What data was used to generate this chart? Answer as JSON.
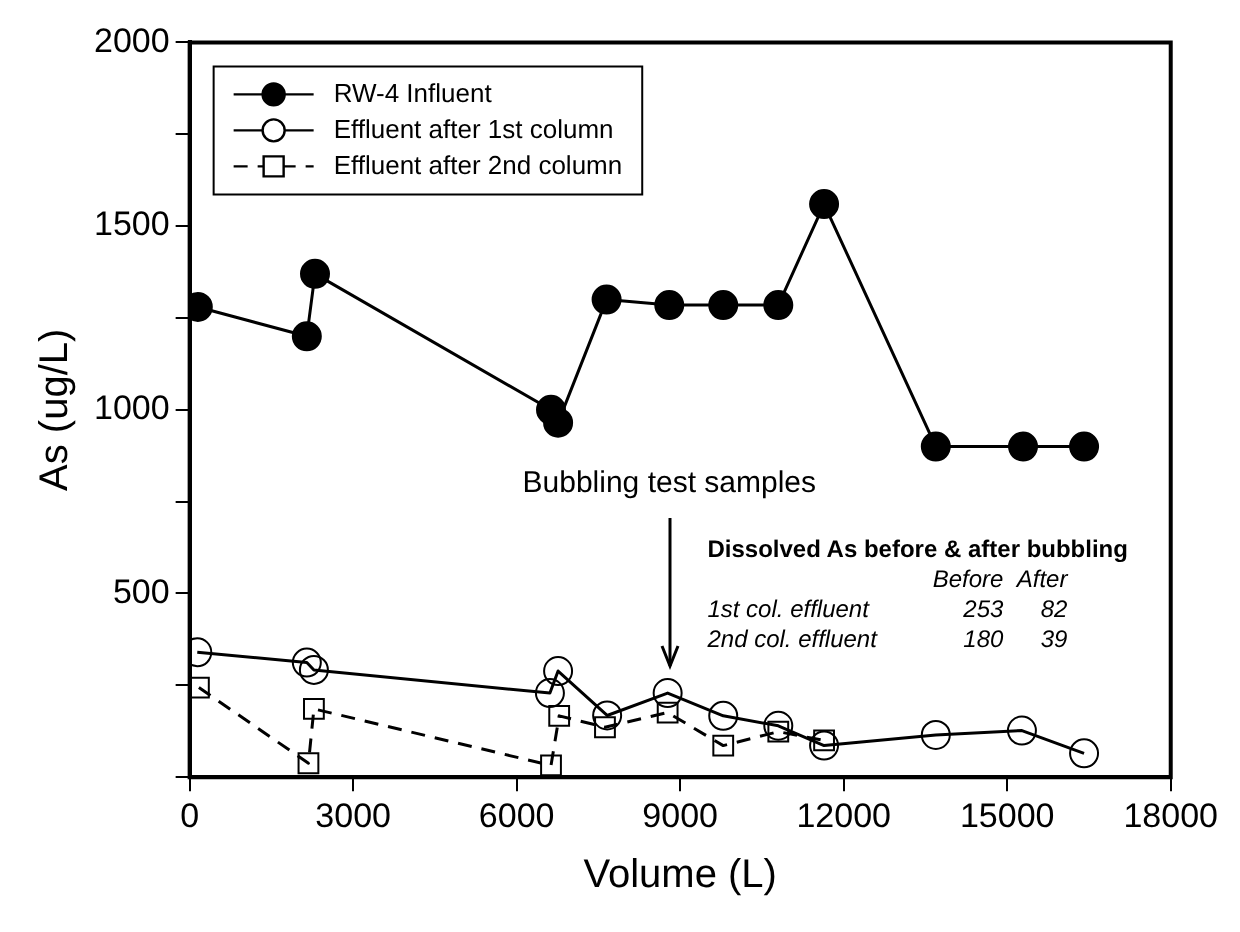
{
  "chart_data": {
    "type": "line",
    "xlabel": "Volume (L)",
    "ylabel": "As (ug/L)",
    "xlim": [
      0,
      18000
    ],
    "xticks": [
      0,
      3000,
      6000,
      9000,
      12000,
      15000,
      18000
    ],
    "ylim": [
      0,
      2000
    ],
    "yticks": [
      {
        "value": 0,
        "label": null
      },
      {
        "value": 250,
        "label": null
      },
      500,
      {
        "value": 750,
        "label": null
      },
      1000,
      {
        "value": 1250,
        "label": null
      },
      1500,
      {
        "value": 1750,
        "label": null
      },
      2000
    ],
    "grid": false,
    "legend": "top left",
    "marker": "circle",
    "line_style": "solid",
    "series": [
      {
        "name": "RW-4 Influent",
        "color": "#000000",
        "x": [
          150,
          2150,
          2300,
          6630,
          6760,
          7650,
          8800,
          9790,
          10800,
          11640,
          13690,
          15290,
          16410
        ],
        "values": [
          1280,
          1200,
          1370,
          1000,
          965,
          1300,
          1285,
          1285,
          1285,
          1560,
          900,
          900,
          900
        ]
      },
      {
        "name": "Effluent after 1st column",
        "color": "#000000",
        "x": [
          140,
          2150,
          2280,
          6610,
          6760,
          7660,
          8770,
          9790,
          10800,
          11640,
          13690,
          15270,
          16410
        ],
        "values": [
          340,
          312,
          292,
          229,
          289,
          168,
          229,
          167,
          140,
          86,
          115,
          127,
          65
        ]
      },
      {
        "name": "Effluent after 2nd column",
        "color": "#000000",
        "marker": "square",
        "line_style": "dashed",
        "x": [
          170,
          2180,
          2280,
          6630,
          6780,
          7620,
          8770,
          9790,
          10800,
          11640
        ],
        "values": [
          244,
          38,
          186,
          32,
          167,
          136,
          176,
          86,
          124,
          100
        ]
      }
    ],
    "annotations": [
      {
        "text": "Bubbling test samples",
        "x": 8800,
        "y": 280
      },
      "Dissolved As before & after bubbling",
      "Before",
      "After",
      "1st col. effluent",
      "253",
      "82",
      "2nd col. effluent",
      "180",
      "39"
    ]
  }
}
